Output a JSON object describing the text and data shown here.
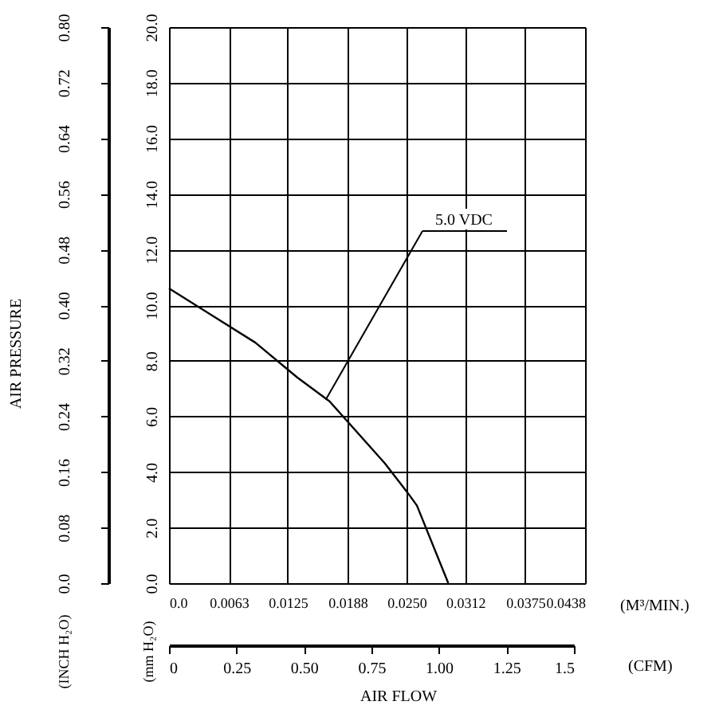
{
  "chart_data": {
    "type": "line",
    "xlabel": "(M³/MIN.)",
    "ylabel": "(mm H₂O)",
    "y2label": "(INCH H₂O)",
    "x2label": "(CFM)",
    "x": [
      0,
      0.0091,
      0.0135,
      0.0169,
      0.0227,
      0.0253,
      0.0261,
      0.0294
    ],
    "series": [
      {
        "color": "#000000",
        "values": [
          10.6,
          8.65,
          7.4,
          6.54,
          4.32,
          3.17,
          2.79,
          0
        ]
      }
    ],
    "xlim": [
      0,
      0.0438
    ],
    "xticks": [
      {
        "value": 0,
        "label": "0.0"
      },
      0.0063,
      0.0125,
      0.0188,
      {
        "value": 0.025,
        "label": "0.0250"
      },
      0.0312,
      0.0375,
      0.0438
    ],
    "ylim": [
      0,
      20
    ],
    "yticks": [
      {
        "value": 0,
        "label": "0.0"
      },
      {
        "value": 2,
        "label": "2.0"
      },
      {
        "value": 4,
        "label": "4.0"
      },
      {
        "value": 6,
        "label": "6.0"
      },
      {
        "value": 8,
        "label": "8.0"
      },
      {
        "value": 10,
        "label": "10.0"
      },
      {
        "value": 12,
        "label": "12.0"
      },
      {
        "value": 14,
        "label": "14.0"
      },
      {
        "value": 16,
        "label": "16.0"
      },
      {
        "value": 18,
        "label": "18.0"
      },
      {
        "value": 20,
        "label": "20.0"
      }
    ],
    "y2lim": [
      0,
      0.8
    ],
    "y2ticks": [
      {
        "value": 0,
        "label": "0.0"
      },
      0.08,
      0.16,
      0.24,
      0.32,
      {
        "value": 0.4,
        "label": "0.40"
      },
      0.48,
      0.56,
      0.64,
      0.72,
      {
        "value": 0.8,
        "label": "0.80"
      }
    ],
    "x2lim": [
      0,
      1.5
    ],
    "x2ticks": [
      0,
      0.25,
      {
        "value": 0.5,
        "label": "0.50"
      },
      0.75,
      {
        "value": 1,
        "label": "1.00"
      },
      1.25,
      1.5
    ],
    "grid": true,
    "annotations": [
      "AIR PRESSURE",
      "AIR FLOW",
      {
        "text": "5.0 VDC",
        "x": 0.0165,
        "y": 6.6
      }
    ]
  }
}
